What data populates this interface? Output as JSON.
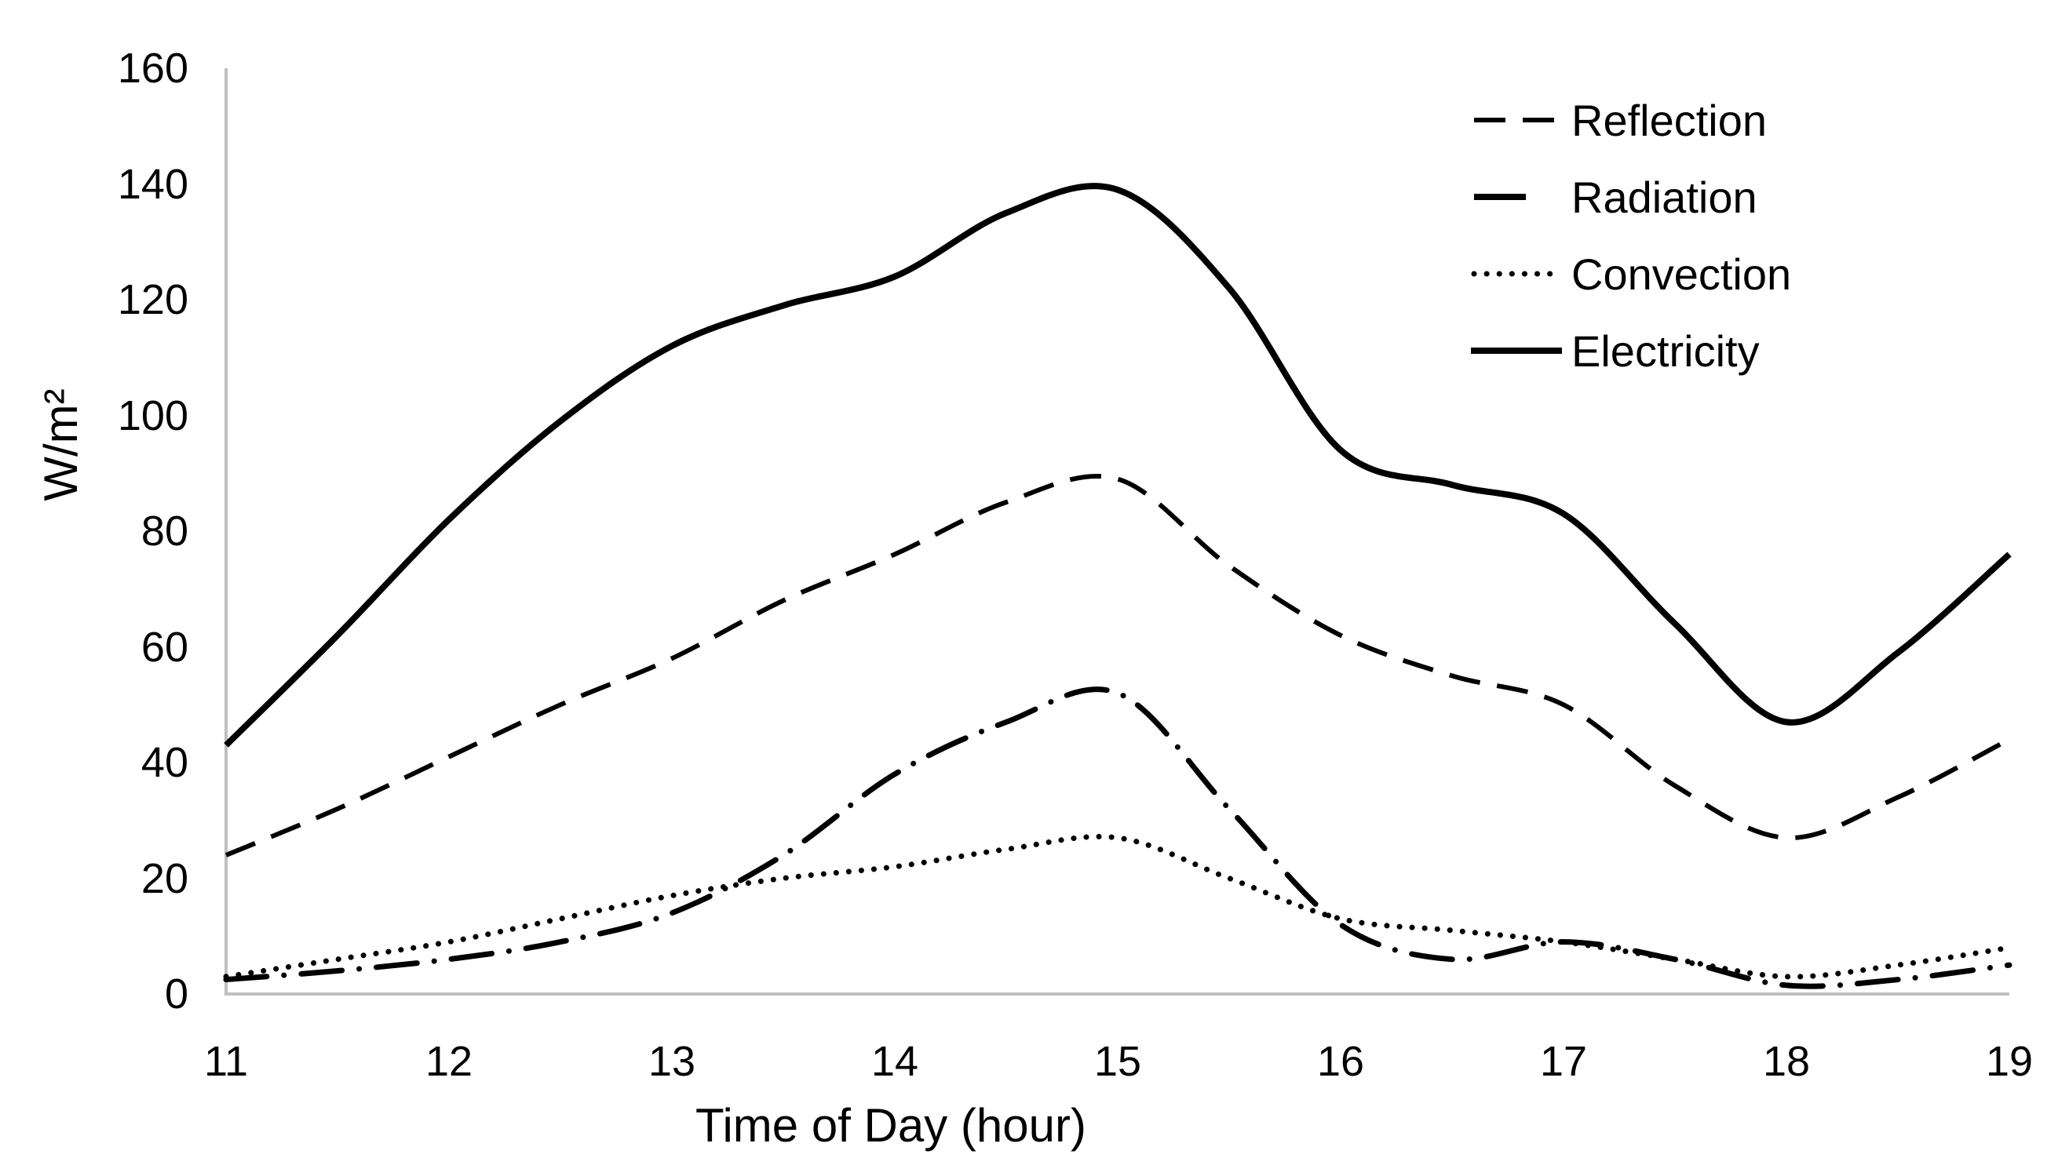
{
  "chart_data": {
    "type": "line",
    "title": "",
    "xlabel": "Time of Day (hour)",
    "ylabel": "W/m²",
    "xlim": [
      11,
      19
    ],
    "ylim": [
      0,
      160
    ],
    "x_ticks": [
      11,
      12,
      13,
      14,
      15,
      16,
      17,
      18,
      19
    ],
    "y_ticks": [
      0,
      20,
      40,
      60,
      80,
      100,
      120,
      140,
      160
    ],
    "grid": false,
    "legend_position": "top-right",
    "axis_color": "#bfbfbf",
    "line_color": "#000000",
    "x": [
      11,
      11.5,
      12,
      12.5,
      13,
      13.5,
      14,
      14.5,
      15,
      15.5,
      16,
      16.5,
      17,
      17.5,
      18,
      18.5,
      19
    ],
    "series": [
      {
        "name": "Reflection",
        "style": "dashed",
        "values": [
          24,
          32,
          41,
          50,
          58,
          68,
          76,
          85,
          89,
          74,
          62,
          55,
          50,
          36,
          27,
          34,
          44
        ]
      },
      {
        "name": "Radiation",
        "style": "dash-dot",
        "values": [
          2.5,
          4,
          6,
          9,
          14,
          24,
          38,
          47,
          52,
          32,
          12,
          6,
          9,
          6,
          1.5,
          2.5,
          5
        ]
      },
      {
        "name": "Convection",
        "style": "dotted",
        "values": [
          3,
          6,
          9,
          13,
          17,
          20,
          22,
          25,
          27,
          20,
          13,
          11,
          9,
          6,
          3,
          5,
          8
        ]
      },
      {
        "name": "Electricity",
        "style": "solid",
        "values": [
          43,
          62,
          82,
          99,
          112,
          119,
          124,
          135,
          139,
          122,
          94,
          88,
          83,
          64,
          47,
          59,
          76
        ]
      }
    ]
  }
}
